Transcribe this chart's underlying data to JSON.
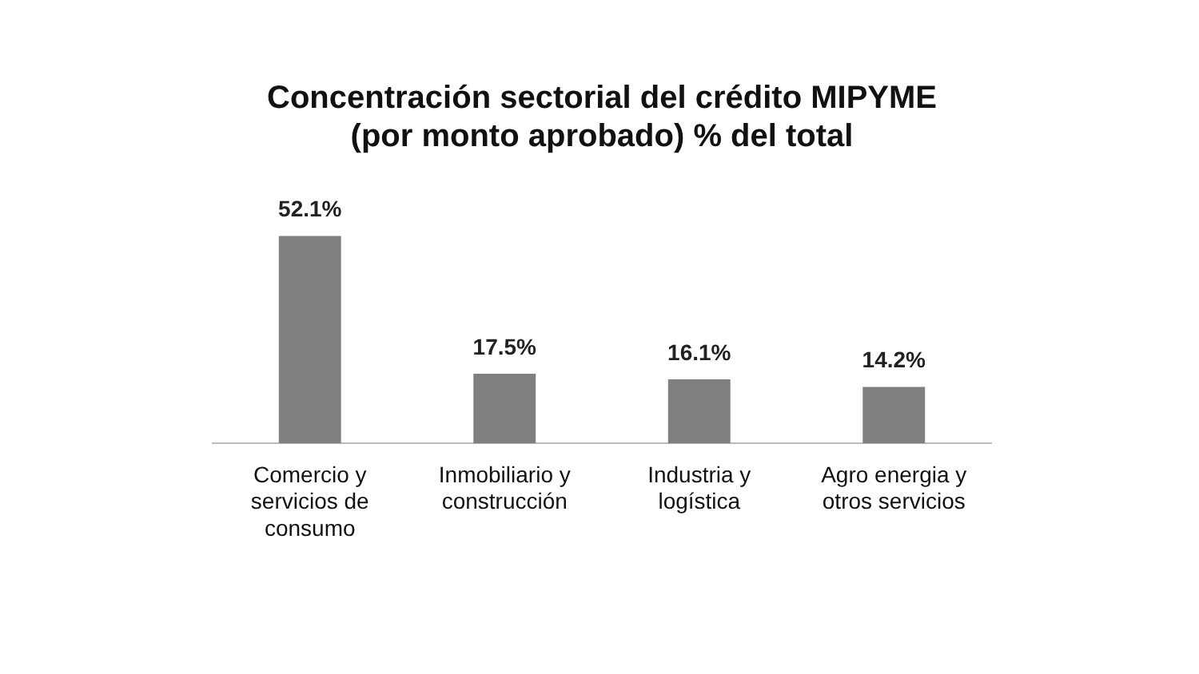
{
  "chart_data": {
    "type": "bar",
    "title": "Concentración sectorial del crédito MIPYME (por monto aprobado) % del total",
    "categories": [
      "Comercio y servicios de consumo",
      "Inmobiliario y construcción",
      "Industria y logística",
      "Agro energia y otros servicios"
    ],
    "values": [
      52.1,
      17.5,
      16.1,
      14.2
    ],
    "color": "#7f7f7f",
    "value_labels": [
      "52.1%",
      "17.5%",
      "16.1%",
      "14.2%"
    ],
    "grid": false,
    "legend": false
  }
}
